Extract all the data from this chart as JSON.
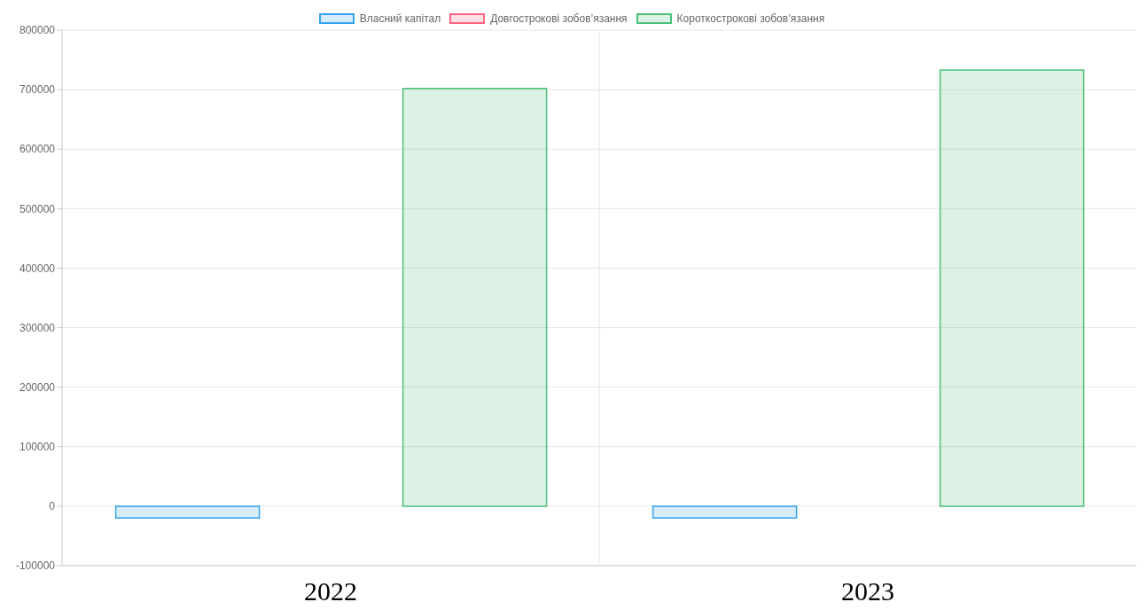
{
  "chart_data": {
    "type": "bar",
    "categories": [
      "2022",
      "2023"
    ],
    "series": [
      {
        "name": "Власний капітал",
        "color": "#36a2eb",
        "values": [
          -20000,
          -20000
        ]
      },
      {
        "name": "Довгострокові зобов’язання",
        "color": "#ff6384",
        "values": [
          0,
          0
        ]
      },
      {
        "name": "Короткострокові зобов’язання",
        "color": "#4bc07a",
        "values": [
          702000,
          733000
        ]
      }
    ],
    "ylim": [
      -100000,
      800000
    ],
    "yticks": [
      -100000,
      0,
      100000,
      200000,
      300000,
      400000,
      500000,
      600000,
      700000,
      800000
    ],
    "grid": true,
    "legend": "top"
  }
}
